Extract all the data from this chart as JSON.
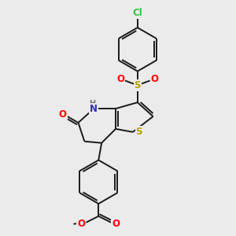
{
  "background_color": "#ebebeb",
  "bond_color": "#1a1a1a",
  "atom_colors": {
    "N": "#3030b0",
    "O": "#ff0000",
    "S_thio": "#b8a000",
    "S_sulfonyl": "#b8a000",
    "Cl": "#38c038",
    "H": "#707070"
  },
  "figsize": [
    3.0,
    3.0
  ],
  "dpi": 100,
  "lw": 1.4
}
